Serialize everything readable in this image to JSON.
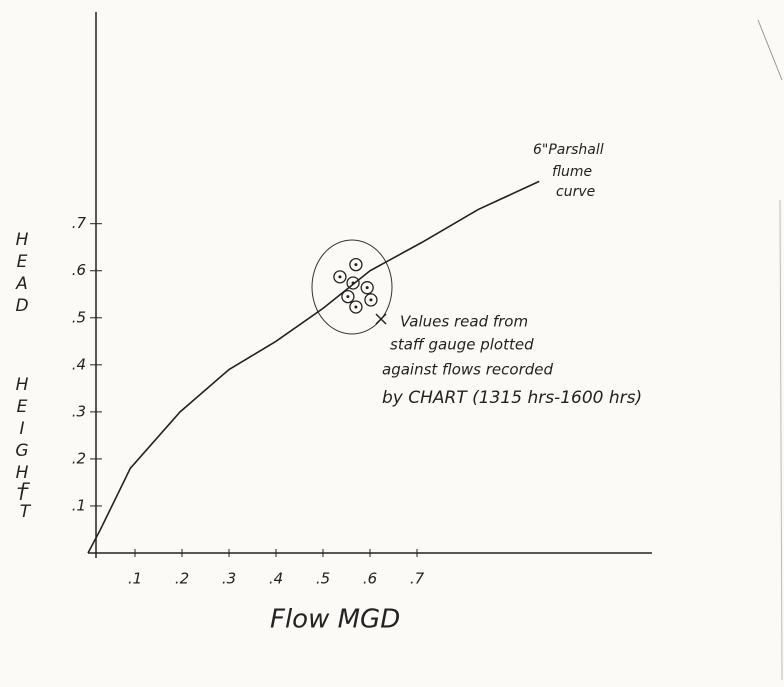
{
  "chart_data": {
    "type": "line",
    "x_label": "Flow MGD",
    "y_label_lines": [
      "HEAD",
      "HEIGHT",
      "FT"
    ],
    "curve_label_lines": [
      "6\"Parshall",
      "flume",
      "curve"
    ],
    "note_lines": [
      "Values read from",
      "staff gauge plotted",
      "against flows recorded",
      "by CHART (1315 hrs-1600 hrs)"
    ],
    "curve": {
      "x": [
        0,
        0.026,
        0.09,
        0.196,
        0.3,
        0.4,
        0.5,
        0.6,
        0.71,
        0.83,
        0.96
      ],
      "y": [
        0,
        0.049,
        0.18,
        0.3,
        0.39,
        0.45,
        0.52,
        0.6,
        0.66,
        0.73,
        0.79
      ],
      "color": "#222222"
    },
    "points": {
      "x": [
        0.536,
        0.57,
        0.564,
        0.594,
        0.553,
        0.57,
        0.602
      ],
      "y": [
        0.587,
        0.613,
        0.574,
        0.564,
        0.545,
        0.523,
        0.538
      ],
      "color": "#222222"
    },
    "xlim": [
      0,
      1.2
    ],
    "ylim": [
      0,
      1.15
    ],
    "xticks": [
      {
        "value": 0.1,
        "label": ".1"
      },
      {
        "value": 0.2,
        "label": ".2"
      },
      {
        "value": 0.3,
        "label": ".3"
      },
      {
        "value": 0.4,
        "label": ".4"
      },
      {
        "value": 0.5,
        "label": ".5"
      },
      {
        "value": 0.6,
        "label": ".6"
      },
      {
        "value": 0.7,
        "label": ".7"
      }
    ],
    "yticks": [
      {
        "value": 0.1,
        "label": ".1"
      },
      {
        "value": 0.2,
        "label": ".2"
      },
      {
        "value": 0.3,
        "label": ".3"
      },
      {
        "value": 0.4,
        "label": ".4"
      },
      {
        "value": 0.5,
        "label": ".5"
      },
      {
        "value": 0.6,
        "label": ".6"
      },
      {
        "value": 0.7,
        "label": ".7"
      }
    ]
  }
}
